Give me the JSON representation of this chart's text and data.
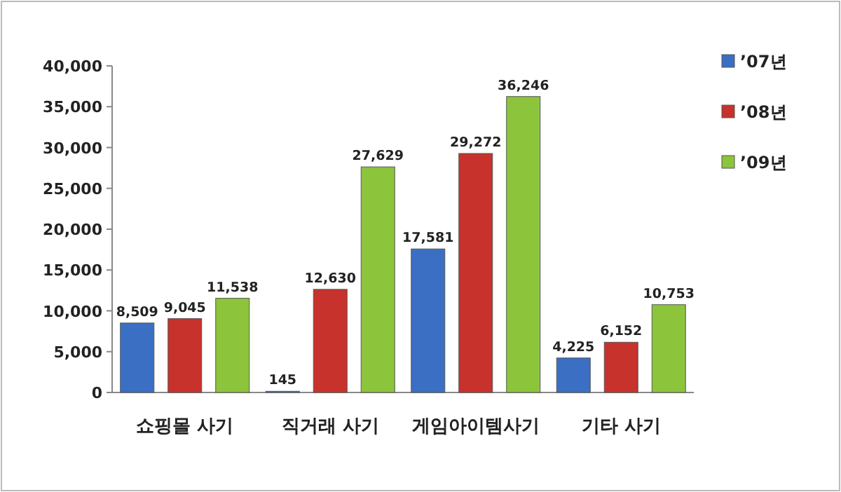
{
  "chart_data": {
    "type": "bar",
    "categories": [
      "쇼핑몰 사기",
      "직거래 사기",
      "게임아이템사기",
      "기타 사기"
    ],
    "series": [
      {
        "name": "’07년",
        "color": "#3a6fc4",
        "values": [
          8509,
          145,
          17581,
          4225
        ],
        "value_labels": [
          "8,509",
          "145",
          "17,581",
          "4,225"
        ]
      },
      {
        "name": "’08년",
        "color": "#c8322c",
        "values": [
          9045,
          12630,
          29272,
          6152
        ],
        "value_labels": [
          "9,045",
          "12,630",
          "29,272",
          "6,152"
        ]
      },
      {
        "name": "’09년",
        "color": "#8cc43c",
        "values": [
          11538,
          27629,
          36246,
          10753
        ],
        "value_labels": [
          "11,538",
          "27,629",
          "36,246",
          "10,753"
        ]
      }
    ],
    "ylim": [
      0,
      40000
    ],
    "yticks": [
      {
        "value": 0,
        "label": "0"
      },
      {
        "value": 5000,
        "label": "5,000"
      },
      {
        "value": 10000,
        "label": "10,000"
      },
      {
        "value": 15000,
        "label": "15,000"
      },
      {
        "value": 20000,
        "label": "20,000"
      },
      {
        "value": 25000,
        "label": "25,000"
      },
      {
        "value": 30000,
        "label": "30,000"
      },
      {
        "value": 35000,
        "label": "35,000"
      },
      {
        "value": 40000,
        "label": "40,000"
      }
    ],
    "grid": false,
    "legend": "top right"
  }
}
